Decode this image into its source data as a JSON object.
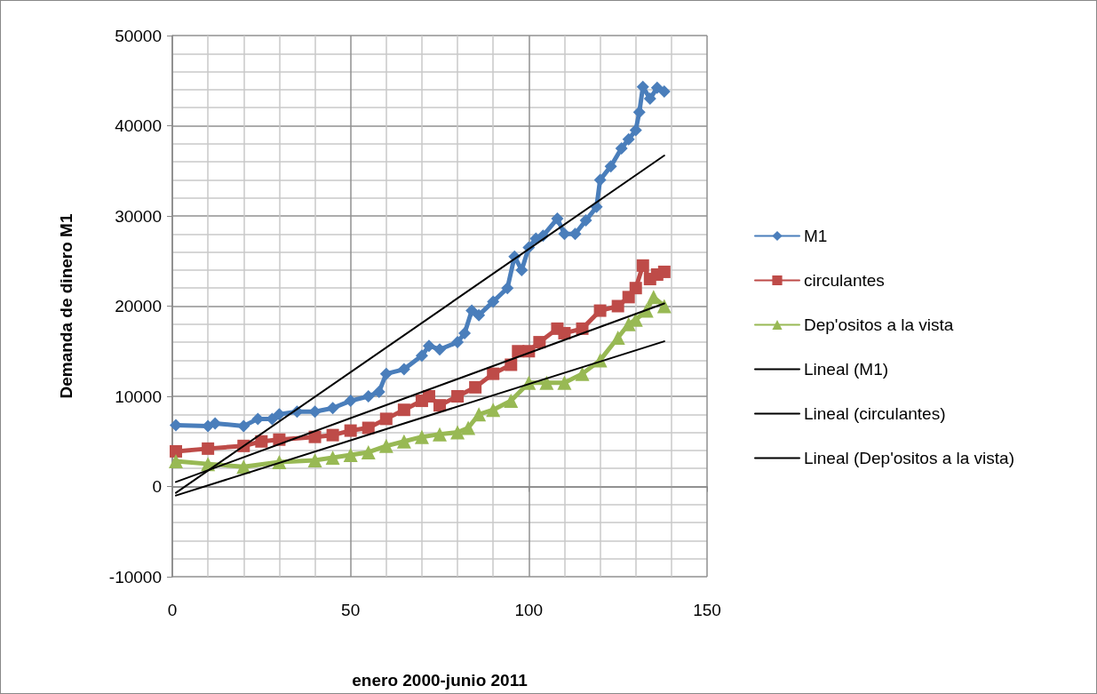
{
  "chart_data": {
    "type": "line",
    "xlabel": "enero 2000-junio 2011",
    "ylabel": "Demanda de dinero M1",
    "xlim": [
      0,
      150
    ],
    "xticks": [
      0,
      50,
      100,
      150
    ],
    "ylim": [
      -10000,
      50000
    ],
    "yticks": [
      -10000,
      0,
      10000,
      20000,
      30000,
      40000,
      50000
    ],
    "grid": true,
    "legend": "right",
    "line_style": "solid",
    "series": [
      {
        "name": "M1",
        "marker": "diamond",
        "color": "#4a7ebb",
        "x": [
          1,
          10,
          12,
          20,
          24,
          28,
          30,
          35,
          40,
          45,
          50,
          55,
          58,
          60,
          65,
          70,
          72,
          75,
          80,
          82,
          84,
          86,
          90,
          94,
          96,
          98,
          100,
          102,
          104,
          108,
          110,
          113,
          116,
          119,
          120,
          123,
          126,
          128,
          130,
          131,
          132,
          134,
          136,
          138
        ],
        "values": [
          6800,
          6700,
          7000,
          6700,
          7500,
          7500,
          8000,
          8300,
          8300,
          8700,
          9500,
          10000,
          10500,
          12500,
          13000,
          14500,
          15600,
          15200,
          16000,
          17000,
          19500,
          19000,
          20500,
          22000,
          25500,
          24000,
          26500,
          27500,
          27800,
          29700,
          28000,
          28000,
          29500,
          31000,
          34000,
          35500,
          37500,
          38500,
          39500,
          41500,
          44300,
          43000,
          44200,
          43800
        ]
      },
      {
        "name": "circulantes",
        "marker": "square",
        "color": "#be4b48",
        "x": [
          1,
          10,
          20,
          25,
          30,
          40,
          45,
          50,
          55,
          60,
          65,
          70,
          72,
          75,
          80,
          85,
          90,
          95,
          97,
          100,
          103,
          108,
          110,
          115,
          120,
          125,
          128,
          130,
          132,
          134,
          136,
          138
        ],
        "values": [
          3900,
          4200,
          4500,
          5000,
          5200,
          5500,
          5700,
          6200,
          6500,
          7500,
          8500,
          9500,
          10000,
          9000,
          10000,
          11000,
          12500,
          13500,
          15000,
          15000,
          16000,
          17500,
          17000,
          17500,
          19500,
          20000,
          21000,
          22000,
          24500,
          23000,
          23500,
          23800
        ]
      },
      {
        "name": "Dep'ositos a la vista",
        "marker": "triangle",
        "color": "#98b954",
        "x": [
          1,
          10,
          20,
          30,
          40,
          45,
          50,
          55,
          60,
          65,
          70,
          75,
          80,
          83,
          86,
          90,
          95,
          100,
          105,
          110,
          115,
          120,
          125,
          128,
          130,
          133,
          135,
          138
        ],
        "values": [
          2800,
          2500,
          2200,
          2700,
          2900,
          3200,
          3500,
          3800,
          4500,
          5000,
          5500,
          5800,
          6000,
          6500,
          8000,
          8500,
          9500,
          11500,
          11500,
          11500,
          12500,
          14000,
          16500,
          18000,
          18500,
          19500,
          21000,
          20000
        ]
      },
      {
        "name": "Lineal (M1)",
        "marker": "none",
        "color": "#000000",
        "x": [
          1,
          138
        ],
        "values": [
          -700,
          36700
        ]
      },
      {
        "name": "Lineal (circulantes)",
        "marker": "none",
        "color": "#000000",
        "x": [
          1,
          138
        ],
        "values": [
          500,
          20300
        ]
      },
      {
        "name": "Lineal (Dep'ositos a la vista)",
        "marker": "none",
        "color": "#000000",
        "x": [
          1,
          138
        ],
        "values": [
          -1000,
          16100
        ]
      }
    ]
  }
}
